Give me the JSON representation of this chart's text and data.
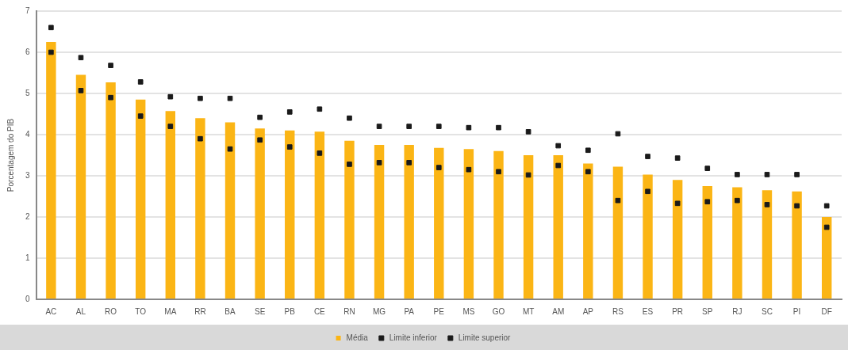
{
  "chart_data": {
    "type": "bar",
    "ylabel": "Porcentagem do PIB",
    "categories": [
      "AC",
      "AL",
      "RO",
      "TO",
      "MA",
      "RR",
      "BA",
      "SE",
      "PB",
      "CE",
      "RN",
      "MG",
      "PA",
      "PE",
      "MS",
      "GO",
      "MT",
      "AM",
      "AP",
      "RS",
      "ES",
      "PR",
      "SP",
      "RJ",
      "SC",
      "PI",
      "DF"
    ],
    "series": [
      {
        "name": "Média",
        "color": "#fbb515",
        "values": [
          6.25,
          5.45,
          5.27,
          4.85,
          4.57,
          4.4,
          4.3,
          4.15,
          4.1,
          4.07,
          3.85,
          3.75,
          3.75,
          3.68,
          3.65,
          3.6,
          3.5,
          3.5,
          3.3,
          3.22,
          3.03,
          2.9,
          2.75,
          2.72,
          2.65,
          2.62,
          2.0
        ]
      },
      {
        "name": "Limite inferior",
        "type": "scatter",
        "marker": "square",
        "color": "#1a1a1a",
        "x": [
          "AC",
          "AL",
          "RO",
          "TO",
          "MA",
          "RR",
          "BA",
          "SE",
          "PB",
          "CE",
          "RN",
          "MG",
          "PA",
          "PE",
          "MS",
          "GO",
          "MT",
          "AM",
          "AP",
          "RS",
          "ES",
          "PR",
          "SP",
          "RJ",
          "SC",
          "PI",
          "DF"
        ],
        "values": [
          6.0,
          5.07,
          4.9,
          4.45,
          4.2,
          3.9,
          3.65,
          3.87,
          3.7,
          3.55,
          3.28,
          3.32,
          3.32,
          3.2,
          3.15,
          3.1,
          3.02,
          3.25,
          3.1,
          2.4,
          2.62,
          2.33,
          2.37,
          2.4,
          2.3,
          2.27,
          1.75
        ]
      },
      {
        "name": "Limite superior",
        "type": "scatter",
        "marker": "square",
        "color": "#1a1a1a",
        "x": [
          "AC",
          "AL",
          "RO",
          "TO",
          "MA",
          "RR",
          "BA",
          "SE",
          "PB",
          "CE",
          "RN",
          "MG",
          "PA",
          "PE",
          "MS",
          "GO",
          "MT",
          "AM",
          "AP",
          "RS",
          "ES",
          "PR",
          "SP",
          "RJ",
          "SC",
          "PI",
          "DF"
        ],
        "values": [
          6.6,
          5.87,
          5.68,
          5.28,
          4.92,
          4.88,
          4.88,
          4.42,
          4.55,
          4.62,
          4.4,
          4.2,
          4.2,
          4.2,
          4.17,
          4.17,
          4.07,
          3.73,
          3.62,
          4.02,
          3.47,
          3.43,
          3.18,
          3.03,
          3.03,
          3.03,
          2.27
        ]
      }
    ],
    "ylim": [
      0,
      7
    ],
    "yticks": [
      0,
      1,
      2,
      3,
      4,
      5,
      6,
      7
    ],
    "grid": "y",
    "legend": "bottom"
  }
}
